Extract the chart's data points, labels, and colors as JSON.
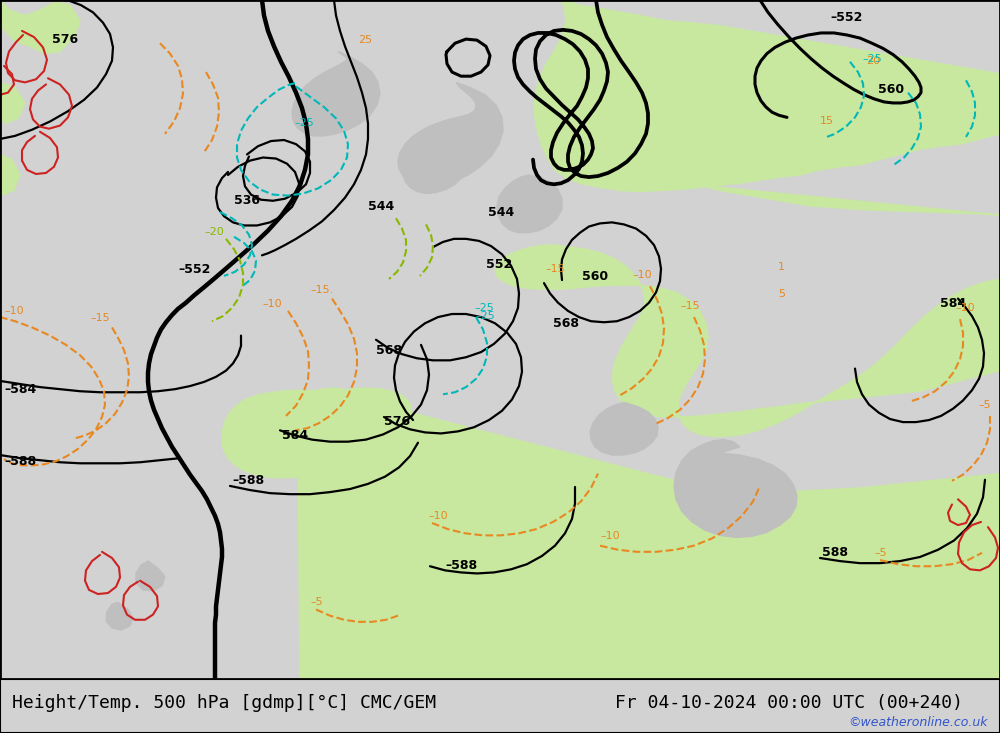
{
  "title_left": "Height/Temp. 500 hPa [gdmp][°C] CMC/GEM",
  "title_right": "Fr 04-10-2024 00:00 UTC (00+240)",
  "watermark": "©weatheronline.co.uk",
  "bg_sea": "#d2d2d2",
  "bg_land_green": "#c8e8a0",
  "bg_land_gray": "#b4b4b4",
  "bg_coast_gray": "#c0bfbf",
  "title_bg": "#ffffff",
  "title_fontsize": 13,
  "watermark_color": "#3355cc",
  "black": "#000000",
  "orange": "#e88820",
  "cyan": "#00b8b8",
  "lime": "#88b800",
  "red": "#cc2222",
  "fig_width": 10.0,
  "fig_height": 7.33
}
